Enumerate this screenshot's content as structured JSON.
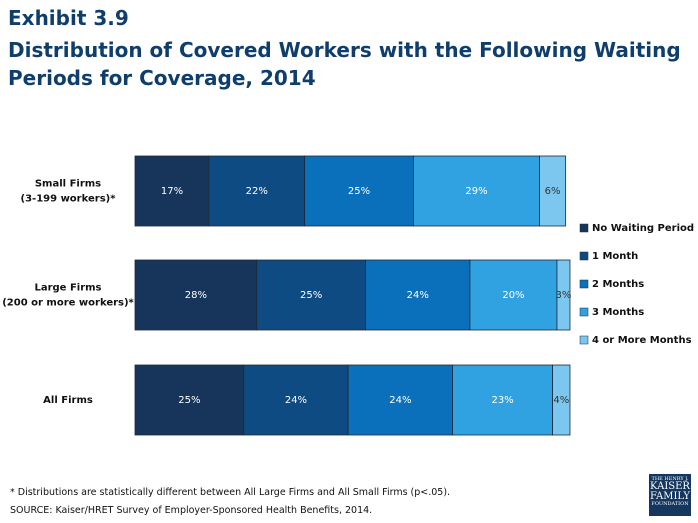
{
  "header": {
    "exhibit": "Exhibit 3.9"
  },
  "chart_data": {
    "type": "stacked-bar-horizontal",
    "title": "Distribution of Covered Workers with the Following Waiting Periods for Coverage, 2014",
    "categories": [
      [
        "Small Firms",
        "(3-199 workers)*"
      ],
      [
        "Large Firms",
        "(200 or more workers)*"
      ],
      [
        "All Firms"
      ]
    ],
    "series": [
      {
        "name": "No Waiting Period",
        "color": "#17345a",
        "values": [
          17,
          28,
          25
        ],
        "value_labels": [
          "17%",
          "28%",
          "25%"
        ]
      },
      {
        "name": "1 Month",
        "color": "#0e4b82",
        "values": [
          22,
          25,
          24
        ],
        "value_labels": [
          "22%",
          "25%",
          "24%"
        ]
      },
      {
        "name": "2 Months",
        "color": "#0b70bb",
        "values": [
          25,
          24,
          24
        ],
        "value_labels": [
          "25%",
          "24%",
          "24%"
        ]
      },
      {
        "name": "3 Months",
        "color": "#31a2e1",
        "values": [
          29,
          20,
          23
        ],
        "value_labels": [
          "29%",
          "20%",
          "23%"
        ]
      },
      {
        "name": "4 or More Months",
        "color": "#7bc7ef",
        "values": [
          6,
          3,
          4
        ],
        "value_labels": [
          "6%",
          "3%",
          "4%"
        ]
      }
    ],
    "legend": "right"
  },
  "footer": {
    "note": "* Distributions are statistically different between All Large Firms and All Small Firms (p<.05).",
    "source": "SOURCE: Kaiser/HRET Survey of Employer-Sponsored Health Benefits, 2014."
  },
  "logo": {
    "lines": [
      "THE HENRY J.",
      "KAISER",
      "FAMILY",
      "FOUNDATION"
    ]
  }
}
